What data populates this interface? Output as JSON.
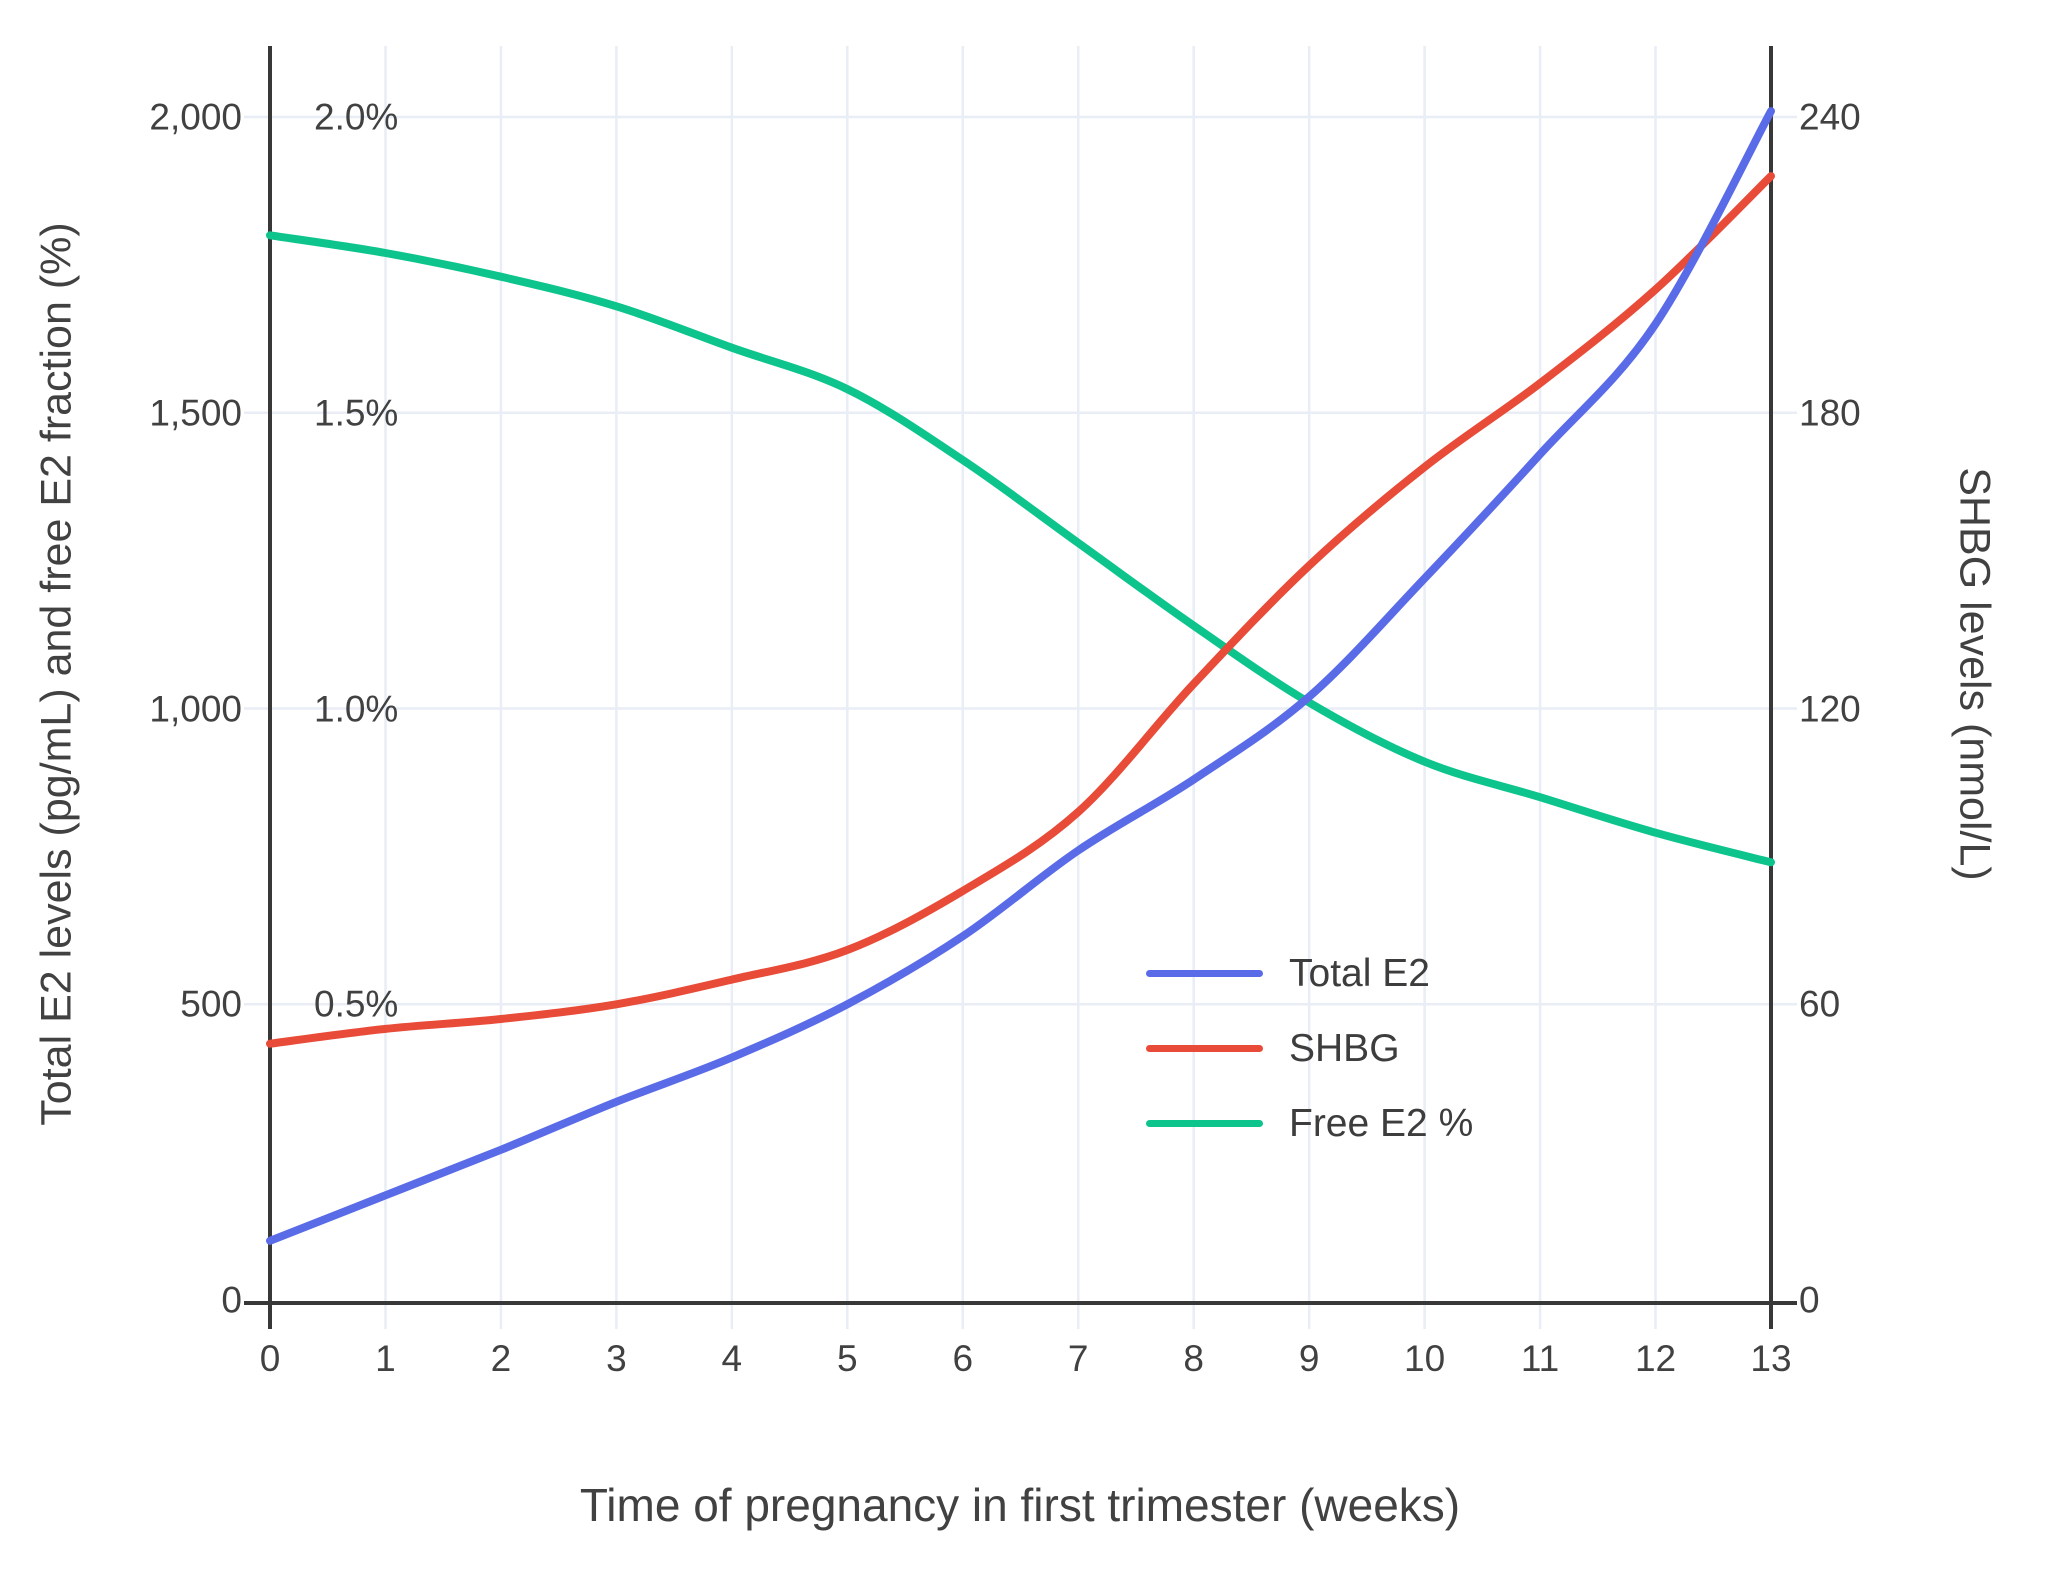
{
  "chart_data": {
    "type": "line",
    "title": "",
    "xlabel": "Time of pregnancy in first trimester (weeks)",
    "ylabel_left": "Total E2 levels (pg/mL) and free E2 fraction (%)",
    "ylabel_right": "SHBG levels (nmol/L)",
    "x": [
      0,
      1,
      2,
      3,
      4,
      5,
      6,
      7,
      8,
      9,
      10,
      11,
      12,
      13
    ],
    "x_tick_labels": [
      "0",
      "1",
      "2",
      "3",
      "4",
      "5",
      "6",
      "7",
      "8",
      "9",
      "10",
      "11",
      "12",
      "13"
    ],
    "axis_ranges": {
      "left_pg_ml": [
        0,
        2000
      ],
      "percent": [
        0,
        2.0
      ],
      "right_nmol_l": [
        0,
        240
      ]
    },
    "grid": true,
    "legend_position": "inside-lower-right",
    "left_ticks": [
      {
        "label": "2,000",
        "value": 2000
      },
      {
        "label": "1,500",
        "value": 1500
      },
      {
        "label": "1,000",
        "value": 1000
      },
      {
        "label": "500",
        "value": 500
      },
      {
        "label": "0",
        "value": 0
      }
    ],
    "percent_ticks": [
      {
        "label": "2.0%",
        "value": 2.0
      },
      {
        "label": "1.5%",
        "value": 1.5
      },
      {
        "label": "1.0%",
        "value": 1.0
      },
      {
        "label": "0.5%",
        "value": 0.5
      }
    ],
    "right_ticks": [
      {
        "label": "240",
        "value": 240
      },
      {
        "label": "180",
        "value": 180
      },
      {
        "label": "120",
        "value": 120
      },
      {
        "label": "60",
        "value": 60
      },
      {
        "label": "0",
        "value": 0
      }
    ],
    "series": [
      {
        "name": "Free E2 %",
        "axis": "percent",
        "color": "#0EC48D",
        "values": [
          1.8,
          1.77,
          1.73,
          1.68,
          1.61,
          1.54,
          1.42,
          1.28,
          1.14,
          1.01,
          0.91,
          0.85,
          0.79,
          0.74
        ]
      },
      {
        "name": "SHBG",
        "axis": "right",
        "color": "#E84B38",
        "values": [
          52,
          55,
          57,
          60,
          65,
          71,
          83,
          99,
          125,
          149,
          169,
          186,
          205,
          228
        ]
      },
      {
        "name": "Total E2",
        "axis": "left",
        "color": "#5A6BE8",
        "values": [
          100,
          177,
          254,
          335,
          410,
          500,
          615,
          760,
          880,
          1020,
          1220,
          1430,
          1650,
          2010
        ]
      }
    ],
    "legend_order": [
      "Total E2",
      "SHBG",
      "Free E2 %"
    ]
  }
}
